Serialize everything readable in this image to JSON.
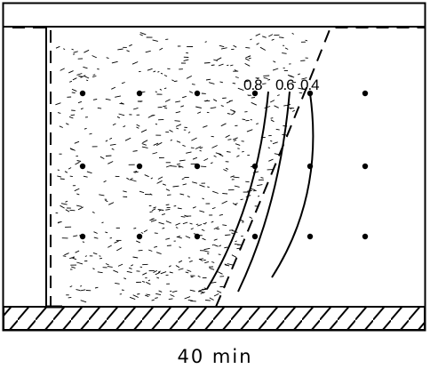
{
  "contour_labels": {
    "c08": "0.8",
    "c06": "0.6",
    "c04": "0.4"
  },
  "caption": "40 min",
  "colors": {
    "ink": "#000000",
    "background": "#ffffff"
  }
}
